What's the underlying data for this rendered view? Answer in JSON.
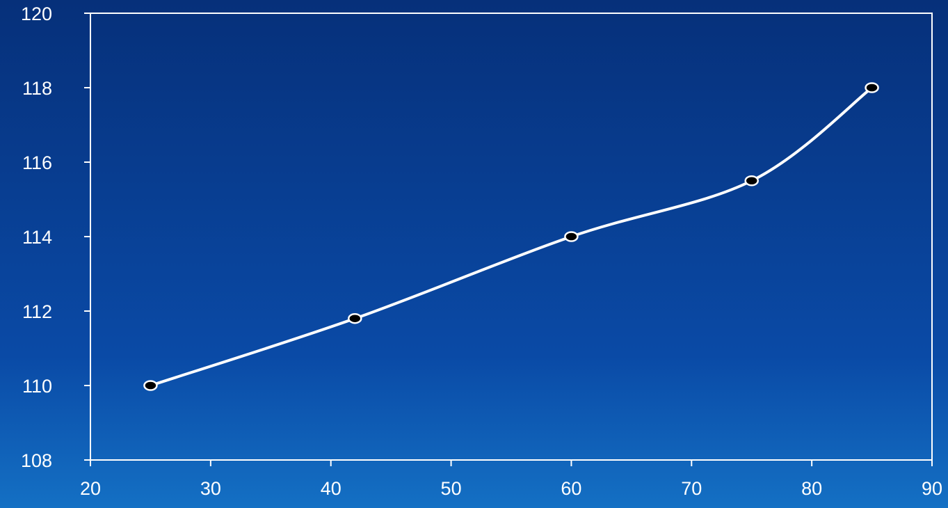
{
  "chart_data": {
    "type": "line",
    "title": "",
    "xlabel": "",
    "ylabel": "",
    "xlim": [
      20,
      90
    ],
    "ylim": [
      108,
      120
    ],
    "x_ticks": [
      "20",
      "30",
      "40",
      "50",
      "60",
      "70",
      "80",
      "90"
    ],
    "y_ticks": [
      "108",
      "110",
      "112",
      "114",
      "116",
      "118",
      "120"
    ],
    "grid": false,
    "smooth": true,
    "series": [
      {
        "x": [
          25,
          42,
          60,
          75,
          85
        ],
        "y": [
          110,
          111.8,
          114,
          115.5,
          118
        ]
      }
    ],
    "colors": {
      "line": "#ffffff",
      "marker_fill": "#000000",
      "marker_stroke": "#ffffff",
      "axes": "#ffffff",
      "text": "#ffffff"
    }
  }
}
